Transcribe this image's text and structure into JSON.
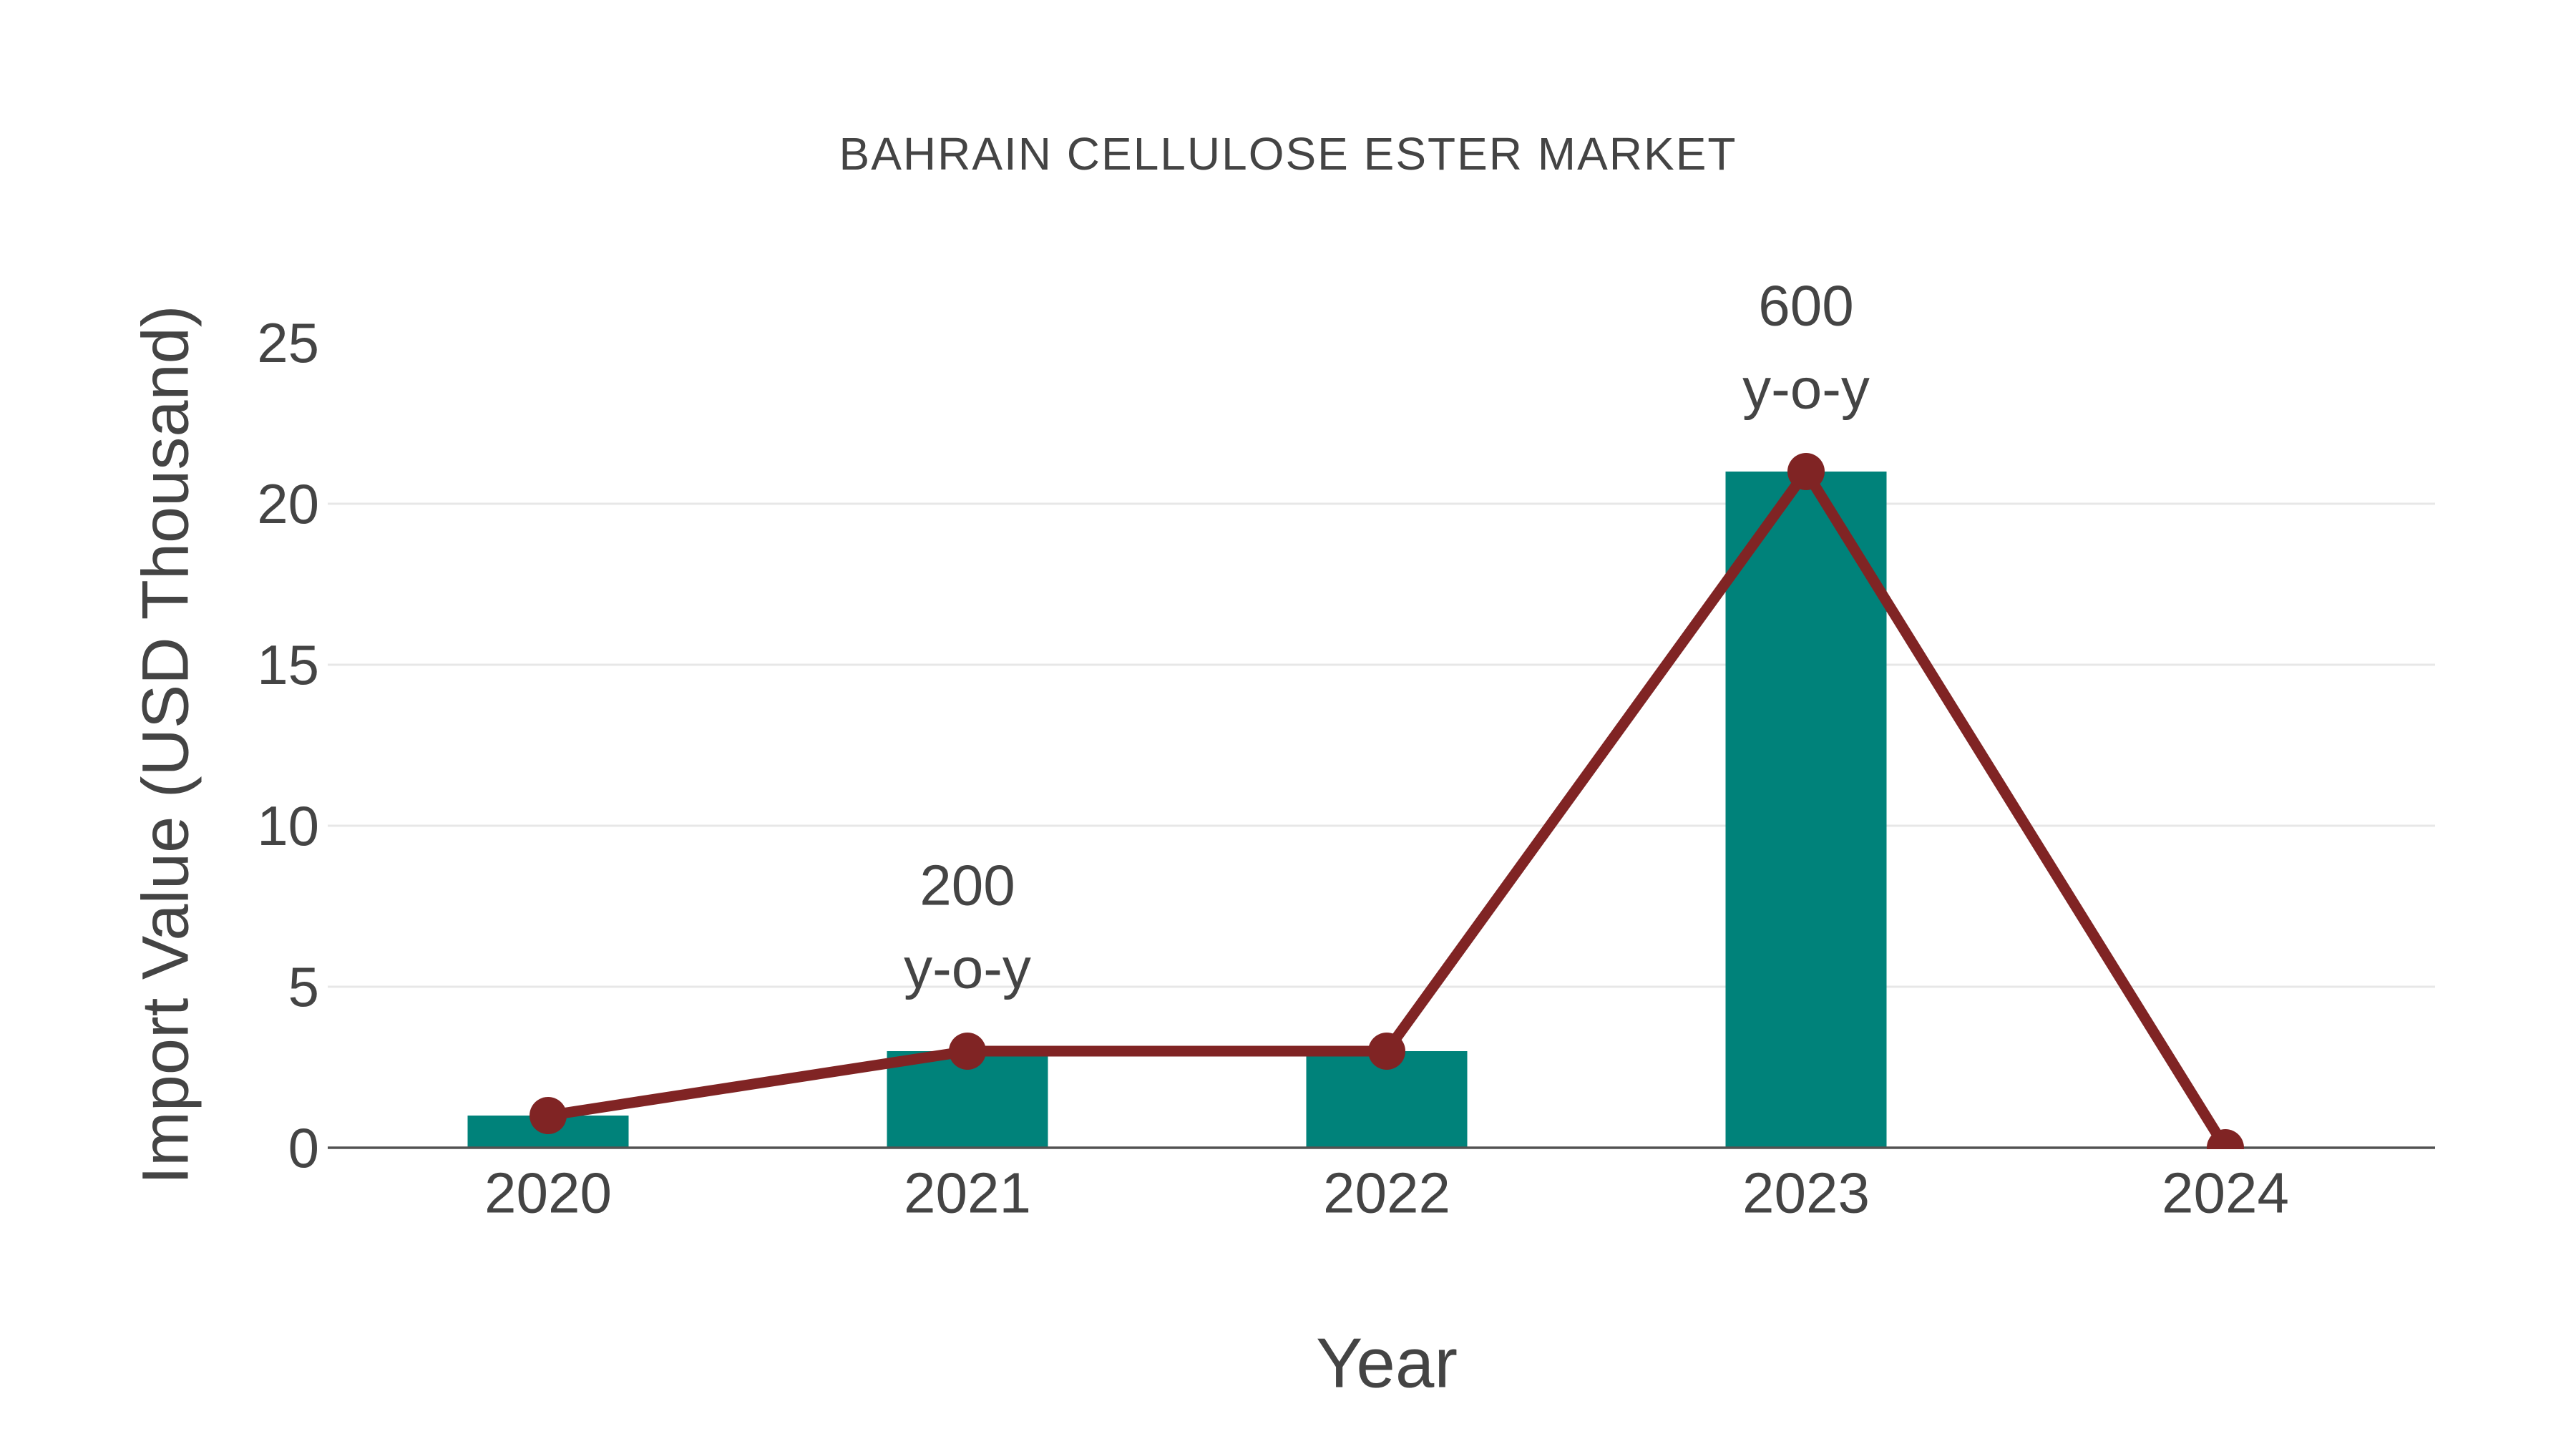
{
  "chart_data": {
    "type": "bar",
    "title": "BAHRAIN CELLULOSE ESTER MARKET",
    "xlabel": "Year",
    "ylabel": "Import Value (USD Thousand)",
    "categories": [
      "2020",
      "2021",
      "2022",
      "2023",
      "2024"
    ],
    "series": [
      {
        "name": "Import Value bars",
        "type": "bar",
        "values": [
          1,
          3,
          3,
          21,
          0
        ]
      },
      {
        "name": "Import Value trend",
        "type": "line",
        "values": [
          1,
          3,
          3,
          21,
          0
        ]
      }
    ],
    "ylim": [
      0,
      25
    ],
    "yticks": [
      0,
      5,
      10,
      15,
      20,
      25
    ],
    "grid": "horizontal",
    "legend_position": "none",
    "annotations": [
      {
        "category": "2021",
        "lines": [
          "200",
          "y-o-y"
        ]
      },
      {
        "category": "2023",
        "lines": [
          "600",
          "y-o-y"
        ]
      }
    ]
  },
  "style": {
    "background": "#FFFFFF",
    "bar_color": "#00827A",
    "line_color": "#802424",
    "marker_color": "#802424",
    "text_color": "#444444",
    "axis_line_color": "#525252",
    "gridline_color": "#E7E7E7"
  }
}
